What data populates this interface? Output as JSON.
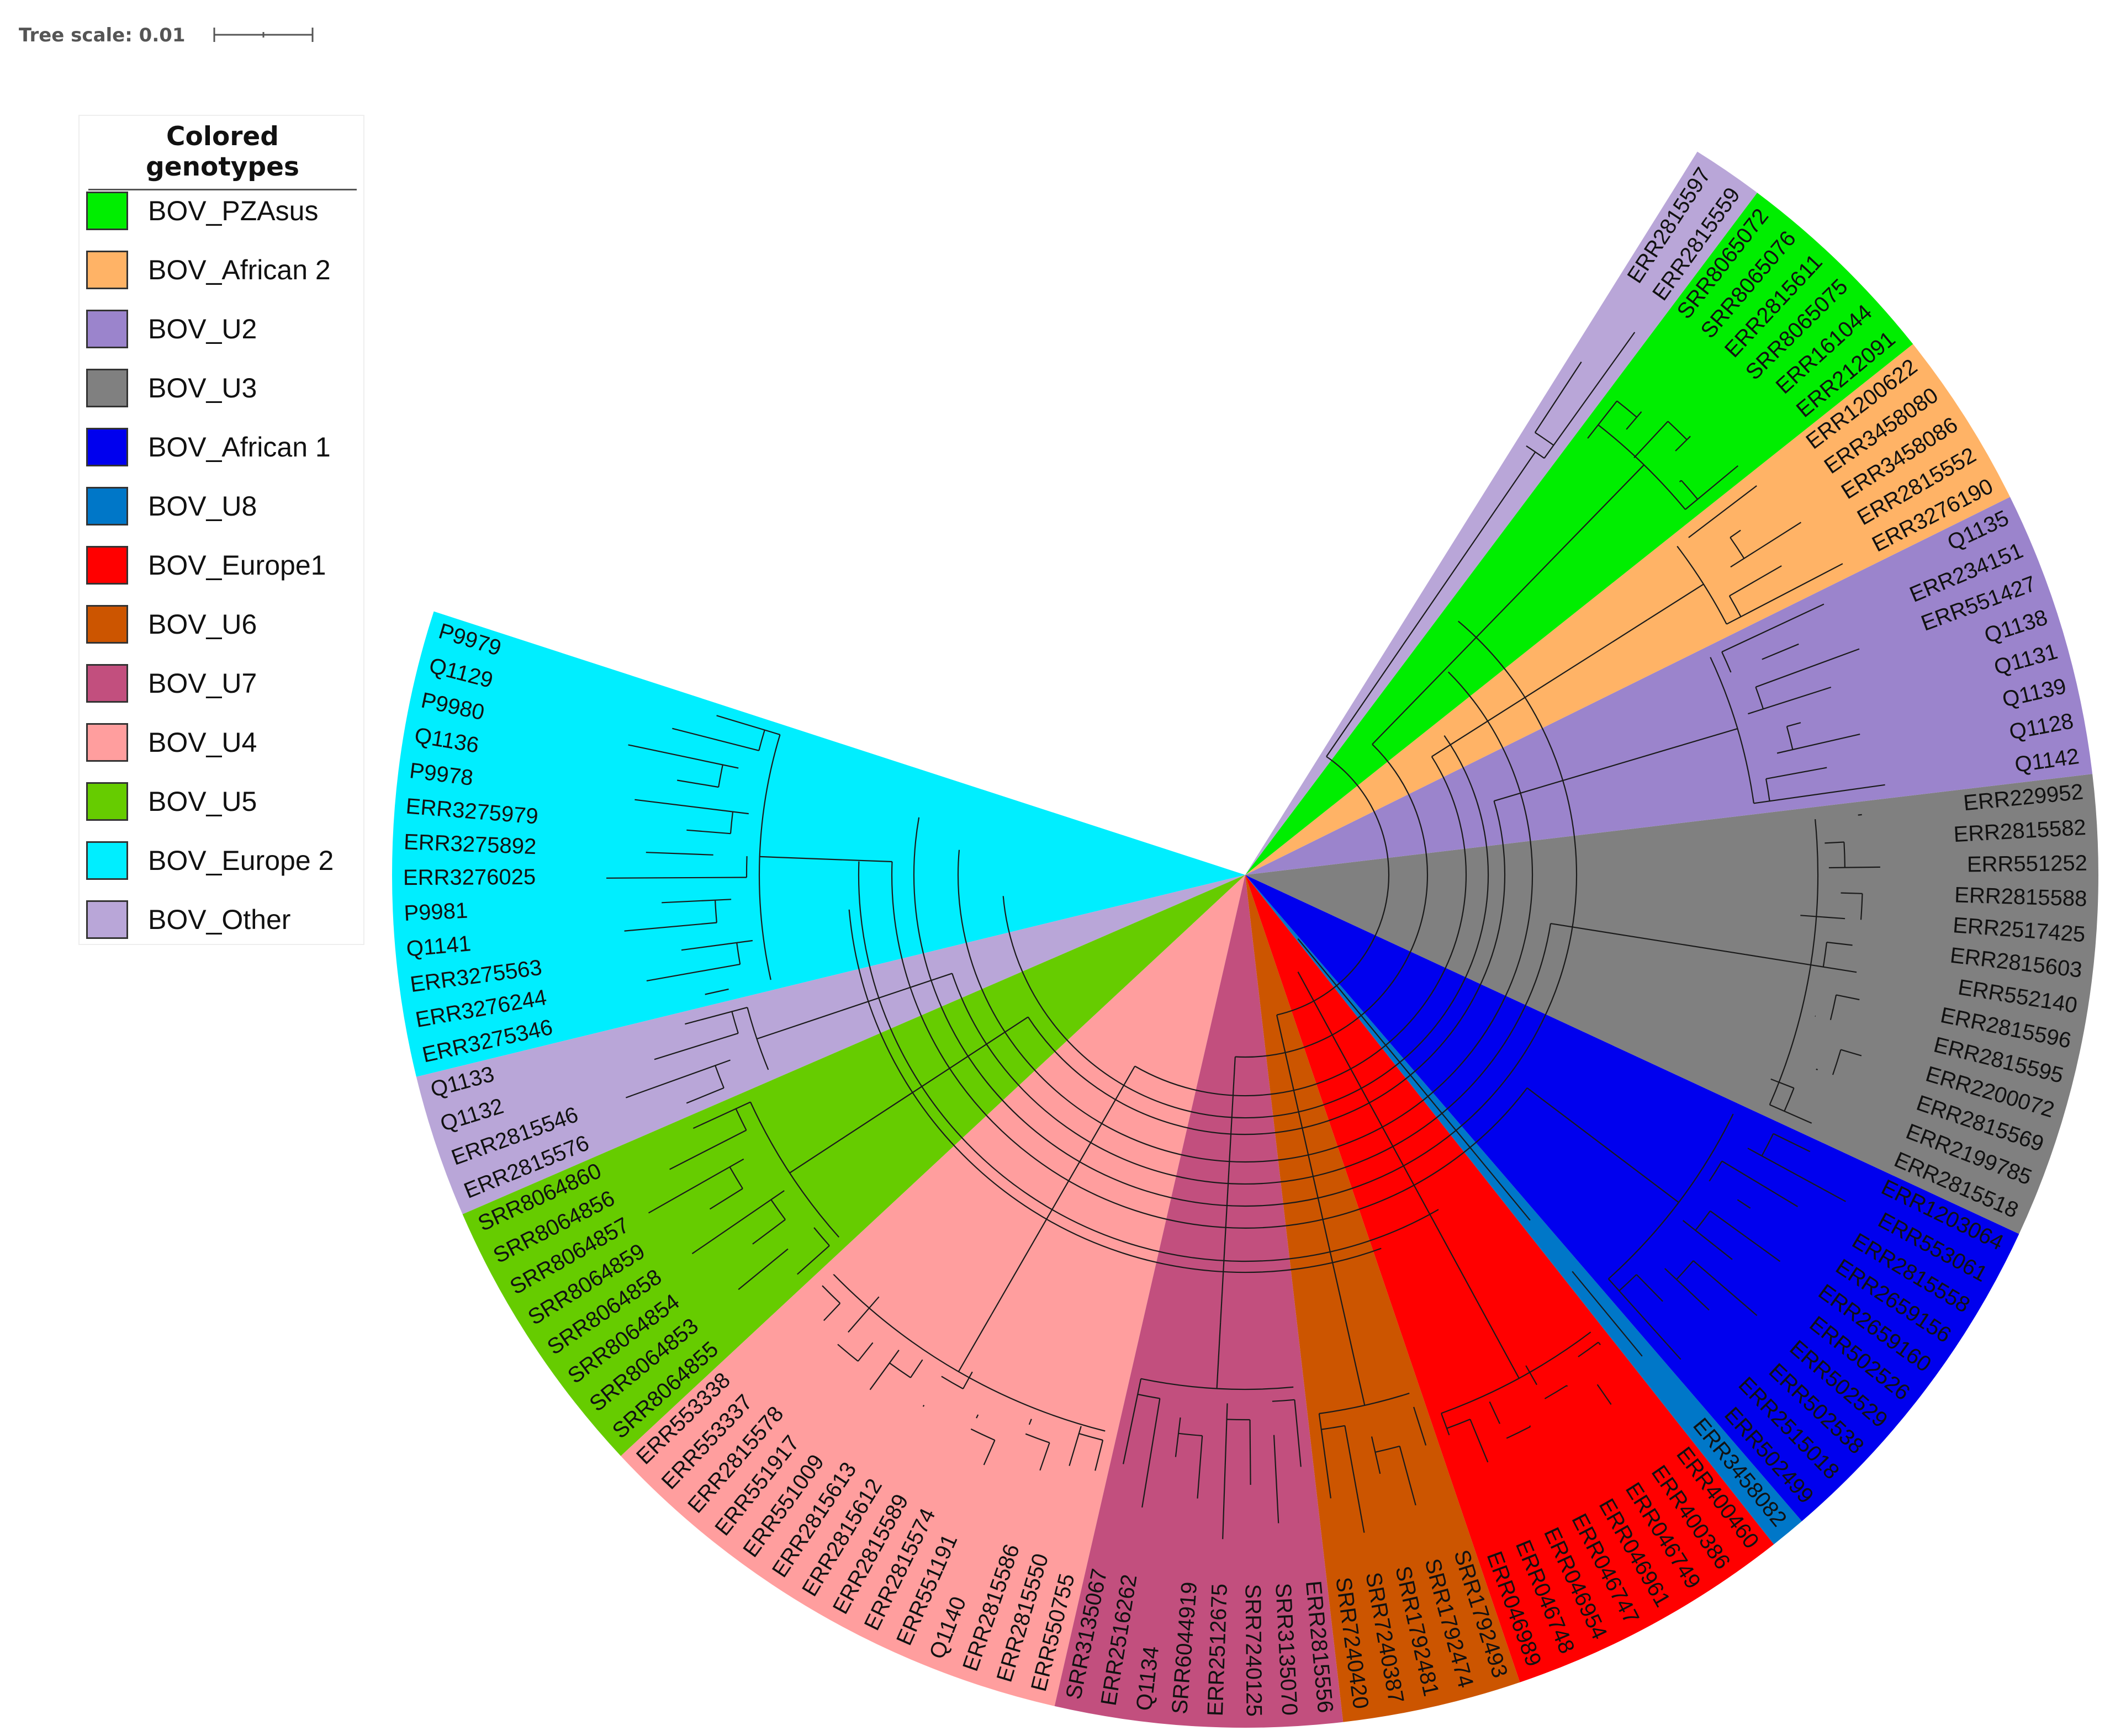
{
  "tree_scale": {
    "label": "Tree scale: 0.01"
  },
  "legend": {
    "title": "Colored genotypes",
    "items": [
      {
        "label": "BOV_PZAsus",
        "color": "#00ee00"
      },
      {
        "label": "BOV_African 2",
        "color": "#ffb366"
      },
      {
        "label": "BOV_U2",
        "color": "#9b84cc"
      },
      {
        "label": "BOV_U3",
        "color": "#808080"
      },
      {
        "label": "BOV_African 1",
        "color": "#0000ee"
      },
      {
        "label": "BOV_U8",
        "color": "#0077c8"
      },
      {
        "label": "BOV_Europe1",
        "color": "#ff0000"
      },
      {
        "label": "BOV_U6",
        "color": "#cc5500"
      },
      {
        "label": "BOV_U7",
        "color": "#c24f7e"
      },
      {
        "label": "BOV_U4",
        "color": "#ff9e9e"
      },
      {
        "label": "BOV_U5",
        "color": "#66cc00"
      },
      {
        "label": "BOV_Europe 2",
        "color": "#00eeff"
      },
      {
        "label": "BOV_Other",
        "color": "#b9a6d8"
      }
    ]
  },
  "clades": [
    {
      "name": "BOV_Europe 2",
      "color": "#00eeff",
      "leaves": [
        "P9979",
        "Q1129",
        "P9980",
        "Q1136",
        "P9978",
        "ERR3275979",
        "ERR3275892",
        "ERR3276025",
        "P9981",
        "Q1141",
        "ERR3275563",
        "ERR3276244",
        "ERR3275346"
      ]
    },
    {
      "name": "BOV_Other",
      "color": "#b9a6d8",
      "leaves": [
        "Q1133",
        "Q1132",
        "ERR2815546",
        "ERR2815576"
      ]
    },
    {
      "name": "BOV_U5",
      "color": "#66cc00",
      "leaves": [
        "SRR8064860",
        "SRR8064856",
        "SRR8064857",
        "SRR8064859",
        "SRR8064858",
        "SRR8064854",
        "SRR8064853",
        "SRR8064855"
      ]
    },
    {
      "name": "BOV_U4",
      "color": "#ff9e9e",
      "leaves": [
        "ERR553338",
        "ERR553337",
        "ERR2815578",
        "ERR551917",
        "ERR551009",
        "ERR2815613",
        "ERR2815612",
        "ERR2815589",
        "ERR2815574",
        "ERR551191",
        "Q1140",
        "ERR2815586",
        "ERR2815550",
        "ERR550755"
      ]
    },
    {
      "name": "BOV_U7",
      "color": "#c24f7e",
      "leaves": [
        "SRR3135067",
        "ERR2516262",
        "Q1134",
        "SRR6044919",
        "ERR2512675",
        "SRR7240125",
        "SRR3135070",
        "ERR2815556"
      ]
    },
    {
      "name": "BOV_U6",
      "color": "#cc5500",
      "leaves": [
        "SRR7240420",
        "SRR7240387",
        "SRR1792481",
        "SRR1792474",
        "SRR1792493"
      ]
    },
    {
      "name": "BOV_Europe1",
      "color": "#ff0000",
      "leaves": [
        "ERR046989",
        "ERR046748",
        "ERR046954",
        "ERR046747",
        "ERR046961",
        "ERR046749",
        "ERR400386",
        "ERR400460"
      ]
    },
    {
      "name": "BOV_U8",
      "color": "#0077c8",
      "leaves": [
        "ERR3458082"
      ]
    },
    {
      "name": "BOV_African 1",
      "color": "#0000ee",
      "leaves": [
        "ERR502499",
        "ERR2515018",
        "ERR502538",
        "ERR502529",
        "ERR502526",
        "ERR2659160",
        "ERR2659156",
        "ERR2815558",
        "ERR553061",
        "ERR1203064"
      ]
    },
    {
      "name": "BOV_U3",
      "color": "#808080",
      "leaves": [
        "ERR2815518",
        "ERR2199785",
        "ERR2815569",
        "ERR2200072",
        "ERR2815595",
        "ERR2815596",
        "ERR552140",
        "ERR2815603",
        "ERR2517425",
        "ERR2815588",
        "ERR551252",
        "ERR2815582",
        "ERR229952"
      ]
    },
    {
      "name": "BOV_U2",
      "color": "#9b84cc",
      "leaves": [
        "Q1142",
        "Q1128",
        "Q1139",
        "Q1131",
        "Q1138",
        "ERR551427",
        "ERR234151",
        "Q1135"
      ]
    },
    {
      "name": "BOV_African 2",
      "color": "#ffb366",
      "leaves": [
        "ERR3276190",
        "ERR2815552",
        "ERR3458086",
        "ERR3458080",
        "ERR1200622"
      ]
    },
    {
      "name": "BOV_PZAsus",
      "color": "#00ee00",
      "leaves": [
        "ERR212091",
        "ERR161044",
        "SRR8065075",
        "ERR2815611",
        "SRR8065076",
        "SRR8065072"
      ]
    },
    {
      "name": "BOV_Other",
      "color": "#b9a6d8",
      "leaves": [
        "ERR2815559",
        "ERR2815597"
      ]
    }
  ]
}
